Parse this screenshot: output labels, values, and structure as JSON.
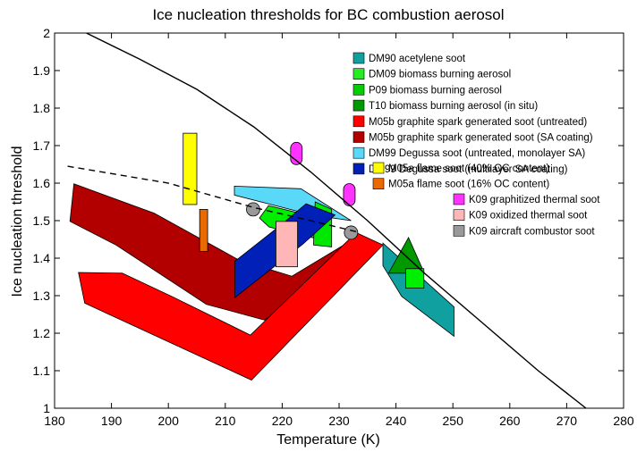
{
  "chart_data": {
    "type": "area",
    "title": "Ice nucleation thresholds for BC combustion aerosol",
    "xlabel": "Temperature (K)",
    "ylabel": "Ice nucleation threshold",
    "xlim": [
      180,
      280
    ],
    "ylim": [
      1,
      2
    ],
    "xticks": [
      180,
      190,
      200,
      210,
      220,
      230,
      240,
      250,
      260,
      270,
      280
    ],
    "yticks": [
      1,
      1.1,
      1.2,
      1.3,
      1.4,
      1.5,
      1.6,
      1.7,
      1.8,
      1.9,
      2
    ],
    "xtick_labels": [
      "180",
      "190",
      "200",
      "210",
      "220",
      "230",
      "240",
      "250",
      "260",
      "270",
      "280"
    ],
    "ytick_labels": [
      "1",
      "1.1",
      "1.2",
      "1.3",
      "1.4",
      "1.5",
      "1.6",
      "1.7",
      "1.8",
      "1.9",
      "2"
    ],
    "grid": false,
    "legend_position": "top-right",
    "lines": [
      {
        "style": "solid",
        "color": "#000000",
        "points": [
          [
            185.6,
            2.0
          ],
          [
            195,
            1.93
          ],
          [
            205,
            1.85
          ],
          [
            215,
            1.75
          ],
          [
            225,
            1.63
          ],
          [
            235,
            1.5
          ],
          [
            245,
            1.36
          ],
          [
            255,
            1.23
          ],
          [
            265,
            1.1
          ],
          [
            273.4,
            1.0
          ]
        ]
      },
      {
        "style": "dashed",
        "color": "#000000",
        "points": [
          [
            182.3,
            1.645
          ],
          [
            200,
            1.6
          ],
          [
            215,
            1.535
          ],
          [
            225,
            1.5
          ],
          [
            233.2,
            1.47
          ]
        ]
      }
    ],
    "series": [
      {
        "name": "M05b graphite spark generated soot (SA coating)",
        "color": "#b20000",
        "shape": "polygon",
        "points": [
          [
            183.4,
            1.598
          ],
          [
            197.5,
            1.52
          ],
          [
            212.3,
            1.396
          ],
          [
            221.7,
            1.352
          ],
          [
            233.0,
            1.455
          ],
          [
            230.8,
            1.375
          ],
          [
            224.2,
            1.308
          ],
          [
            216.9,
            1.235
          ],
          [
            206.7,
            1.277
          ],
          [
            190.8,
            1.435
          ],
          [
            182.7,
            1.498
          ]
        ]
      },
      {
        "name": "M05b graphite spark generated soot (untreated)",
        "color": "#ff0000",
        "shape": "polygon",
        "points": [
          [
            184.2,
            1.362
          ],
          [
            191.9,
            1.36
          ],
          [
            200.6,
            1.298
          ],
          [
            214.4,
            1.195
          ],
          [
            233.0,
            1.468
          ],
          [
            237.7,
            1.435
          ],
          [
            214.6,
            1.075
          ],
          [
            185.3,
            1.28
          ]
        ]
      },
      {
        "name": "DM99 Degussa soot (untreated, monolayer SA)",
        "color": "#5ad8f8",
        "shape": "polygon",
        "points": [
          [
            211.6,
            1.592
          ],
          [
            223.3,
            1.585
          ],
          [
            232.1,
            1.5
          ],
          [
            225.3,
            1.515
          ],
          [
            211.6,
            1.568
          ]
        ]
      },
      {
        "name": "DM09 biomass burning aerosol",
        "color": "#00ee00",
        "shape": "polygon",
        "points": [
          [
            216.0,
            1.507
          ],
          [
            217.6,
            1.54
          ],
          [
            225.8,
            1.51
          ],
          [
            226.1,
            1.452
          ],
          [
            217.7,
            1.483
          ]
        ]
      },
      {
        "name": "P09 biomass burning aerosol",
        "color": "#00e800",
        "shape": "polygon",
        "points": [
          [
            225.8,
            1.55
          ],
          [
            228.7,
            1.53
          ],
          [
            228.7,
            1.43
          ],
          [
            225.5,
            1.435
          ]
        ]
      },
      {
        "name": "DM99 Degussa soot (multilayer SA coating)",
        "color": "#0020b8",
        "shape": "polygon",
        "points": [
          [
            211.7,
            1.392
          ],
          [
            219.9,
            1.49
          ],
          [
            224.2,
            1.545
          ],
          [
            229.3,
            1.515
          ],
          [
            223.7,
            1.438
          ],
          [
            211.7,
            1.295
          ]
        ]
      },
      {
        "name": "K09 oxidized thermal soot",
        "color": "#ffb6b6",
        "shape": "rect",
        "x": [
          218.9,
          222.7
        ],
        "y": [
          1.377,
          1.498
        ]
      },
      {
        "name": "M05a flame soot (40% OC content)",
        "color": "#ffff00",
        "shape": "rect",
        "x": [
          202.6,
          205.0
        ],
        "y": [
          1.543,
          1.733
        ]
      },
      {
        "name": "M05a flame soot (16% OC content)",
        "color": "#e86a00",
        "shape": "rect",
        "x": [
          205.5,
          206.9
        ],
        "y": [
          1.418,
          1.53
        ]
      },
      {
        "name": "DM90 acetylene soot",
        "color": "#10a0a0",
        "shape": "polygon",
        "points": [
          [
            237.7,
            1.44
          ],
          [
            250.2,
            1.27
          ],
          [
            250.2,
            1.192
          ],
          [
            241.0,
            1.298
          ],
          [
            237.7,
            1.38
          ]
        ]
      },
      {
        "name": "T10 biomass burning aerosol (in situ)",
        "color": "#009900",
        "shape": "polygon",
        "points": [
          [
            242.2,
            1.455
          ],
          [
            238.7,
            1.36
          ],
          [
            245.0,
            1.36
          ]
        ]
      },
      {
        "name": "T10 biomass burning aerosol (in situ)",
        "color": "#00ee00",
        "shape": "rect",
        "x": [
          241.7,
          244.9
        ],
        "y": [
          1.32,
          1.372
        ]
      },
      {
        "name": "K09 graphitized thermal soot",
        "color": "#ff33ff",
        "shape": "pill",
        "points": [
          [
            222.5,
            1.679
          ],
          [
            231.8,
            1.569
          ]
        ]
      },
      {
        "name": "K09 aircraft combustor soot",
        "color": "#999999",
        "shape": "circle",
        "points": [
          [
            214.9,
            1.53
          ],
          [
            232.1,
            1.468
          ]
        ]
      }
    ],
    "legend_groups": [
      [
        "DM90 acetylene soot",
        "DM09 biomass burning aerosol",
        "P09 biomass burning aerosol",
        "T10 biomass burning aerosol (in situ)",
        "M05b graphite spark generated soot (untreated)",
        "M05b graphite spark generated soot (SA coating)",
        "DM99 Degussa soot (untreated, monolayer SA)",
        "DM99 Degussa soot (multilayer SA coating)"
      ],
      [
        "M05a flame soot (40% OC content)",
        "M05a flame soot (16% OC content)"
      ],
      [
        "K09 graphitized thermal soot",
        "K09 oxidized thermal soot",
        "K09 aircraft combustor soot"
      ]
    ],
    "legend": [
      {
        "label": "DM90 acetylene soot",
        "color": "#10a0a0"
      },
      {
        "label": "DM09 biomass burning aerosol",
        "color": "#22ee22"
      },
      {
        "label": "P09 biomass burning aerosol",
        "color": "#00d000"
      },
      {
        "label": "T10 biomass burning aerosol (in situ)",
        "color": "#009900"
      },
      {
        "label": "M05b graphite spark generated soot (untreated)",
        "color": "#ff0000"
      },
      {
        "label": "M05b graphite spark generated soot (SA coating)",
        "color": "#b20000"
      },
      {
        "label": "DM99 Degussa soot (untreated, monolayer SA)",
        "color": "#5ad8f8"
      },
      {
        "label": "DM99 Degussa soot (multilayer SA coating)",
        "color": "#0020b8"
      },
      {
        "label": "M05a flame soot (40% OC content)",
        "color": "#ffff00"
      },
      {
        "label": "M05a flame soot (16% OC content)",
        "color": "#e86a00"
      },
      {
        "label": "K09 graphitized thermal soot",
        "color": "#ff33ff"
      },
      {
        "label": "K09 oxidized thermal soot",
        "color": "#ffb6b6"
      },
      {
        "label": "K09 aircraft combustor soot",
        "color": "#999999"
      }
    ]
  }
}
